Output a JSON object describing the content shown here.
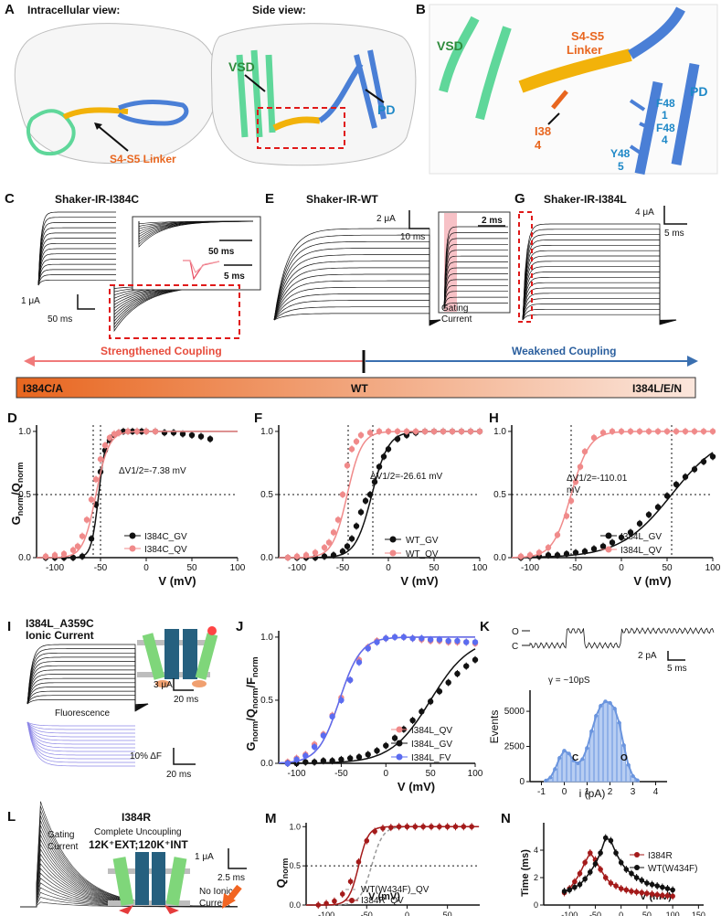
{
  "colors": {
    "vsd": "#5fd79a",
    "pd": "#4a7fd6",
    "linker": "#f2b20a",
    "residue": "#e8661f",
    "qv": "#f08a8a",
    "gv": "#111111",
    "fv": "#5b6cf0",
    "i384r": "#a41a1a",
    "wt_gray": "#999999",
    "fluor": "#8c86e6",
    "bar_start": "#e8661f",
    "bar_end": "#fbe6dc",
    "arrow_left": "#f07a7a",
    "arrow_right": "#3a6fb0"
  },
  "panels": {
    "A": {
      "letter": "A",
      "title_left": "Intracellular view:",
      "title_right": "Side view:",
      "label_linker": "S4-S5 Linker",
      "label_vsd": "VSD",
      "label_pd": "PD"
    },
    "B": {
      "letter": "B",
      "label_vsd": "VSD",
      "label_linker_1": "S4-S5",
      "label_linker_2": "Linker",
      "label_pd": "PD",
      "res_i384_1": "I38",
      "res_i384_2": "4",
      "res_f481_1": "F48",
      "res_f481_2": "1",
      "res_f484_1": "F48",
      "res_f484_2": "4",
      "res_y485_1": "Y48",
      "res_y485_2": "5"
    },
    "C": {
      "letter": "C",
      "title": "Shaker-IR-I384C",
      "scale_y": "1 μA",
      "scale_x": "50 ms",
      "inset_scale1": "50 ms",
      "inset_scale2": "5 ms"
    },
    "E": {
      "letter": "E",
      "title": "Shaker-IR-WT",
      "scale_y": "2 μA",
      "scale_x": "10 ms",
      "inset_scale": "2 ms",
      "inset_label_1": "Gating",
      "inset_label_2": "Current"
    },
    "G": {
      "letter": "G",
      "title": "Shaker-IR-I384L",
      "scale_y": "4 μA",
      "scale_x": "5 ms"
    },
    "coupling": {
      "left": "Strengthened Coupling",
      "right": "Weakened Coupling",
      "bar_left": "I384C/A",
      "bar_mid": "WT",
      "bar_right": "I384L/E/N"
    },
    "D": {
      "letter": "D",
      "delta": "ΔV1/2=-7.38 mV",
      "legend": [
        "I384C_GV",
        "I384C_QV"
      ]
    },
    "F": {
      "letter": "F",
      "delta": "ΔV1/2=-26.61 mV",
      "legend": [
        "WT_GV",
        "WT_QV"
      ]
    },
    "H": {
      "letter": "H",
      "delta_1": "ΔV1/2=-110.01",
      "delta_2": "mV",
      "legend": [
        "I384L_GV",
        "I384L_QV"
      ]
    },
    "I": {
      "letter": "I",
      "title_1": "I384L_A359C",
      "title_2": "Ionic Current",
      "scale_y": "3 μA",
      "scale_x": "20 ms",
      "fluor_label": "Fluorescence",
      "fluor_scale_y": "10% ΔF",
      "fluor_scale_x": "20 ms"
    },
    "J": {
      "letter": "J",
      "legend": [
        "I384L_QV",
        "I384L_GV",
        "I384L_FV"
      ]
    },
    "K": {
      "letter": "K",
      "open": "O",
      "closed": "C",
      "scale_y": "2 pA",
      "scale_x": "5 ms",
      "gamma": "γ = ~10pS",
      "ylabel": "Events",
      "xlabel": "i (pA)",
      "peak_c": "C",
      "peak_o": "O"
    },
    "L": {
      "letter": "L",
      "title": "I384R",
      "sub1": "Complete Uncoupling",
      "sub2": "12K⁺EXT;120K⁺INT",
      "gating_1": "Gating",
      "gating_2": "Current",
      "scale_y": "1 μA",
      "scale_x": "2.5 ms",
      "noionic_1": "No Ionic",
      "noionic_2": "Current"
    },
    "M": {
      "letter": "M",
      "legend": [
        "WT(W434F)_QV",
        "I384R_QV"
      ]
    },
    "N": {
      "letter": "N",
      "legend": [
        "I384R",
        "WT(W434F)"
      ]
    }
  },
  "chart_data": [
    {
      "id": "D",
      "type": "scatter",
      "xlabel": "V (mV)",
      "ylabel": "Gnorm/Qnorm",
      "xlim": [
        -120,
        100
      ],
      "ylim": [
        0,
        1.05
      ],
      "xticks": [
        -100,
        -50,
        0,
        50,
        100
      ],
      "yticks": [
        0.0,
        0.5,
        1.0
      ],
      "series": [
        {
          "name": "I384C_GV",
          "color": "gv",
          "v_half": -52,
          "slope": 4,
          "x": [
            -110,
            -100,
            -90,
            -80,
            -70,
            -60,
            -55,
            -50,
            -45,
            -40,
            -35,
            -30,
            -25,
            -20,
            -15,
            -10,
            -5,
            0,
            10,
            20,
            30,
            40,
            50,
            60,
            70
          ],
          "y": [
            0.0,
            0.0,
            0.0,
            0.0,
            0.01,
            0.15,
            0.42,
            0.68,
            0.85,
            0.93,
            0.97,
            0.99,
            1.0,
            1.0,
            1.0,
            1.0,
            1.0,
            1.0,
            1.0,
            0.99,
            0.99,
            0.98,
            0.97,
            0.96,
            0.94
          ]
        },
        {
          "name": "I384C_QV",
          "color": "qv",
          "v_half": -55,
          "slope": 7,
          "x": [
            -110,
            -100,
            -90,
            -80,
            -75,
            -70,
            -65,
            -60,
            -55,
            -50,
            -45,
            -40,
            -35,
            -30,
            -20,
            -10,
            0,
            10
          ],
          "y": [
            0.01,
            0.02,
            0.03,
            0.06,
            0.09,
            0.17,
            0.3,
            0.46,
            0.62,
            0.78,
            0.89,
            0.95,
            0.98,
            0.99,
            1.0,
            1.0,
            1.0,
            1.0
          ]
        }
      ],
      "vlines": [
        -58,
        -50
      ],
      "hline": 0.5
    },
    {
      "id": "F",
      "type": "scatter",
      "xlabel": "V (mV)",
      "ylabel": "",
      "xlim": [
        -120,
        100
      ],
      "ylim": [
        0,
        1.05
      ],
      "xticks": [
        -100,
        -50,
        0,
        50,
        100
      ],
      "yticks": [
        0.0,
        0.5,
        1.0
      ],
      "series": [
        {
          "name": "WT_GV",
          "color": "gv",
          "v_half": -18,
          "slope": 9,
          "x": [
            -110,
            -100,
            -90,
            -80,
            -70,
            -60,
            -50,
            -45,
            -40,
            -35,
            -30,
            -25,
            -20,
            -15,
            -10,
            -5,
            0,
            10,
            20,
            30,
            40,
            50,
            60,
            70,
            80,
            90,
            100
          ],
          "y": [
            0.0,
            0.0,
            0.0,
            0.0,
            0.01,
            0.02,
            0.05,
            0.09,
            0.15,
            0.25,
            0.36,
            0.45,
            0.5,
            0.6,
            0.72,
            0.8,
            0.86,
            0.94,
            0.97,
            0.99,
            1.0,
            1.0,
            1.0,
            1.0,
            1.0,
            1.0,
            1.0
          ]
        },
        {
          "name": "WT_QV",
          "color": "qv",
          "v_half": -45,
          "slope": 8,
          "x": [
            -110,
            -100,
            -90,
            -80,
            -70,
            -65,
            -60,
            -55,
            -50,
            -45,
            -40,
            -35,
            -30,
            -20,
            -10,
            0,
            10,
            20,
            30,
            40,
            50,
            60,
            70,
            80,
            90,
            100
          ],
          "y": [
            0.0,
            0.01,
            0.02,
            0.04,
            0.08,
            0.12,
            0.2,
            0.3,
            0.5,
            0.73,
            0.86,
            0.92,
            0.97,
            0.99,
            1.0,
            1.0,
            1.0,
            1.0,
            1.0,
            1.0,
            1.0,
            1.0,
            1.0,
            1.0,
            1.0,
            1.0
          ]
        }
      ],
      "vlines": [
        -44,
        -17
      ],
      "hline": 0.5
    },
    {
      "id": "H",
      "type": "scatter",
      "xlabel": "V (mV)",
      "ylabel": "",
      "xlim": [
        -120,
        100
      ],
      "ylim": [
        0,
        1.05
      ],
      "xticks": [
        -100,
        -50,
        0,
        50,
        100
      ],
      "yticks": [
        0.0,
        0.5,
        1.0
      ],
      "series": [
        {
          "name": "I384L_GV",
          "color": "gv",
          "v_half": 55,
          "slope": 28,
          "x": [
            -110,
            -100,
            -90,
            -80,
            -70,
            -60,
            -50,
            -40,
            -30,
            -20,
            -10,
            0,
            10,
            20,
            30,
            40,
            50,
            60,
            70,
            80,
            90,
            100
          ],
          "y": [
            0.0,
            0.01,
            0.01,
            0.02,
            0.02,
            0.03,
            0.04,
            0.05,
            0.07,
            0.09,
            0.12,
            0.16,
            0.2,
            0.27,
            0.34,
            0.4,
            0.49,
            0.58,
            0.64,
            0.7,
            0.76,
            0.8
          ]
        },
        {
          "name": "I384L_QV",
          "color": "qv",
          "v_half": -55,
          "slope": 10,
          "x": [
            -110,
            -100,
            -90,
            -80,
            -70,
            -60,
            -55,
            -50,
            -45,
            -40,
            -30,
            -20,
            -10,
            0,
            10,
            20,
            30,
            40,
            50,
            60,
            70,
            80,
            90,
            100
          ],
          "y": [
            0.01,
            0.02,
            0.04,
            0.08,
            0.18,
            0.33,
            0.45,
            0.6,
            0.72,
            0.84,
            0.95,
            0.99,
            1.0,
            1.0,
            1.0,
            1.0,
            1.0,
            1.0,
            1.0,
            1.0,
            1.0,
            1.0,
            1.0,
            1.0
          ]
        }
      ],
      "vlines": [
        -55,
        55
      ],
      "hline": 0.5
    },
    {
      "id": "J",
      "type": "scatter",
      "xlabel": "V (mV)",
      "ylabel": "Gnorm/Qnorm/Fnorm",
      "xlim": [
        -120,
        100
      ],
      "ylim": [
        0,
        1.05
      ],
      "xticks": [
        -100,
        -50,
        0,
        50,
        100
      ],
      "yticks": [
        0.0,
        0.5,
        1.0
      ],
      "series": [
        {
          "name": "I384L_QV",
          "color": "qv",
          "v_half": -52,
          "slope": 12,
          "x": [
            -110,
            -100,
            -90,
            -80,
            -70,
            -60,
            -50,
            -40,
            -30,
            -20,
            -10,
            0,
            10,
            20,
            30,
            40,
            50,
            60,
            70,
            80,
            90,
            100
          ],
          "y": [
            0.01,
            0.04,
            0.07,
            0.15,
            0.23,
            0.38,
            0.52,
            0.66,
            0.82,
            0.92,
            0.97,
            0.99,
            1.0,
            1.0,
            0.99,
            0.98,
            0.97,
            0.97,
            0.96,
            0.96,
            0.96,
            0.95
          ]
        },
        {
          "name": "I384L_GV",
          "color": "gv",
          "v_half": 50,
          "slope": 22,
          "x": [
            -110,
            -100,
            -90,
            -80,
            -70,
            -60,
            -50,
            -40,
            -30,
            -20,
            -10,
            0,
            10,
            20,
            30,
            40,
            50,
            60,
            70,
            80,
            90,
            100
          ],
          "y": [
            0.0,
            0.0,
            0.01,
            0.01,
            0.02,
            0.02,
            0.03,
            0.04,
            0.05,
            0.07,
            0.1,
            0.14,
            0.2,
            0.27,
            0.34,
            0.41,
            0.49,
            0.57,
            0.64,
            0.71,
            0.77,
            0.82
          ]
        },
        {
          "name": "I384L_FV",
          "color": "fv",
          "v_half": -52,
          "slope": 12,
          "x": [
            -110,
            -100,
            -90,
            -80,
            -70,
            -60,
            -50,
            -40,
            -30,
            -20,
            -10,
            0,
            10,
            20,
            30,
            40,
            50,
            60,
            70,
            80,
            90,
            100
          ],
          "y": [
            0.0,
            0.03,
            0.06,
            0.13,
            0.22,
            0.37,
            0.5,
            0.66,
            0.8,
            0.91,
            0.96,
            0.99,
            1.0,
            1.0,
            0.99,
            0.99,
            0.98,
            0.98,
            0.97,
            0.97,
            0.96,
            0.96
          ]
        }
      ]
    },
    {
      "id": "K",
      "type": "bar",
      "xlabel": "i (pA)",
      "ylabel": "Events",
      "xlim": [
        -1.5,
        4.5
      ],
      "ylim": [
        0,
        6500
      ],
      "xticks": [
        -1,
        0,
        1,
        2,
        3,
        4
      ],
      "yticks": [
        0,
        2500,
        5000
      ],
      "x": [
        -0.8,
        -0.6,
        -0.4,
        -0.2,
        0.0,
        0.2,
        0.4,
        0.6,
        0.8,
        1.0,
        1.2,
        1.4,
        1.6,
        1.8,
        2.0,
        2.2,
        2.4,
        2.6,
        2.8,
        3.0,
        3.2
      ],
      "values": [
        80,
        300,
        900,
        1700,
        2200,
        2000,
        1500,
        1300,
        1600,
        2400,
        3600,
        4700,
        5400,
        5700,
        5600,
        5200,
        4200,
        2600,
        1200,
        400,
        100
      ]
    },
    {
      "id": "M",
      "type": "line",
      "xlabel": "V (mV)",
      "ylabel": "Qnorm",
      "xlim": [
        -125,
        90
      ],
      "ylim": [
        0,
        1.05
      ],
      "xticks": [
        -100,
        -50,
        0,
        50
      ],
      "yticks": [
        0.0,
        0.5,
        1.0
      ],
      "series": [
        {
          "name": "WT(W434F)_QV",
          "color": "wt_gray",
          "dashed": true,
          "v_half": -44,
          "slope": 7
        },
        {
          "name": "I384R_QV",
          "color": "i384r",
          "v_half": -60,
          "slope": 6,
          "x": [
            -110,
            -100,
            -90,
            -80,
            -70,
            -60,
            -50,
            -40,
            -30,
            -20,
            -10,
            0,
            10,
            20,
            30,
            40,
            50,
            60,
            70,
            80
          ],
          "y": [
            0.0,
            0.02,
            0.05,
            0.14,
            0.3,
            0.55,
            0.82,
            0.94,
            0.98,
            0.99,
            1.0,
            1.0,
            1.0,
            1.0,
            1.0,
            1.0,
            1.0,
            1.0,
            1.0,
            1.0
          ]
        }
      ],
      "hline": 0.5
    },
    {
      "id": "N",
      "type": "line",
      "xlabel": "V (mV)",
      "ylabel": "Time (ms)",
      "xlim": [
        -150,
        160
      ],
      "ylim": [
        0,
        6
      ],
      "xticks": [
        -100,
        -50,
        0,
        50,
        100,
        150
      ],
      "yticks": [
        0,
        2,
        4
      ],
      "series": [
        {
          "name": "I384R",
          "color": "i384r",
          "x": [
            -110,
            -100,
            -90,
            -80,
            -70,
            -60,
            -50,
            -40,
            -30,
            -20,
            -10,
            0,
            10,
            20,
            30,
            40,
            50,
            60,
            70,
            80,
            90,
            100
          ],
          "y": [
            0.9,
            1.2,
            1.7,
            2.3,
            3.1,
            3.8,
            3.3,
            2.6,
            2.0,
            1.6,
            1.4,
            1.2,
            1.1,
            1.0,
            0.95,
            0.9,
            0.85,
            0.8,
            0.75,
            0.7,
            0.68,
            0.65
          ]
        },
        {
          "name": "WT(W434F)",
          "color": "gv",
          "x": [
            -110,
            -100,
            -90,
            -80,
            -70,
            -60,
            -50,
            -40,
            -30,
            -20,
            -10,
            0,
            10,
            20,
            30,
            40,
            50,
            60,
            70,
            80,
            90,
            100
          ],
          "y": [
            1.0,
            1.1,
            1.3,
            1.5,
            1.9,
            2.4,
            3.0,
            3.8,
            4.9,
            4.7,
            3.8,
            3.1,
            2.6,
            2.3,
            2.0,
            1.8,
            1.6,
            1.5,
            1.4,
            1.3,
            1.2,
            1.1
          ]
        }
      ]
    }
  ]
}
